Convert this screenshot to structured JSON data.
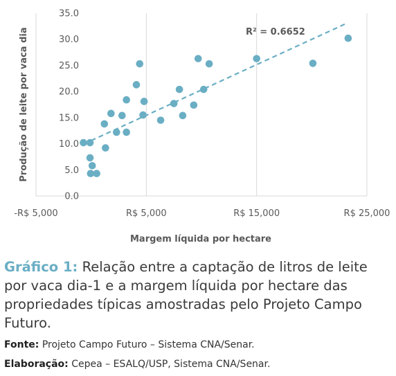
{
  "chart_data": {
    "type": "scatter",
    "title": "",
    "xlabel": "Margem líquida por hectare",
    "ylabel": "Produção de leite por vaca dia",
    "xlim": [
      -5000,
      25000
    ],
    "ylim": [
      0,
      35
    ],
    "x_ticks": [
      -5000,
      5000,
      15000,
      25000
    ],
    "x_tick_labels": [
      "-R$ 5,000",
      "R$ 5,000",
      "R$ 15,000",
      "R$ 25,000"
    ],
    "y_ticks": [
      0,
      5,
      10,
      15,
      20,
      25,
      30,
      35
    ],
    "y_tick_labels": [
      "0.0",
      "5.0",
      "10.0",
      "15.0",
      "20.0",
      "25.0",
      "30.0",
      "35.0"
    ],
    "grid": {
      "vertical": true,
      "horizontal": false
    },
    "marker_color": "#6aaec4",
    "trendline": {
      "type": "linear",
      "style": "dashed",
      "color": "#6aaec4",
      "x": [
        0,
        23000
      ],
      "y": [
        10.6,
        32.9
      ],
      "label": "R² = 0.6652"
    },
    "points": [
      {
        "x": -700,
        "y": 10.2
      },
      {
        "x": -100,
        "y": 10.2
      },
      {
        "x": -100,
        "y": 7.3
      },
      {
        "x": 100,
        "y": 5.8
      },
      {
        "x": -50,
        "y": 4.3
      },
      {
        "x": 500,
        "y": 4.3
      },
      {
        "x": 1300,
        "y": 9.2
      },
      {
        "x": 1200,
        "y": 13.8
      },
      {
        "x": 1800,
        "y": 15.8
      },
      {
        "x": 2300,
        "y": 12.2
      },
      {
        "x": 2800,
        "y": 15.4
      },
      {
        "x": 3200,
        "y": 18.4
      },
      {
        "x": 3200,
        "y": 12.2
      },
      {
        "x": 4100,
        "y": 21.3
      },
      {
        "x": 4400,
        "y": 25.3
      },
      {
        "x": 4700,
        "y": 15.5
      },
      {
        "x": 4800,
        "y": 18.1
      },
      {
        "x": 6300,
        "y": 14.5
      },
      {
        "x": 7500,
        "y": 17.7
      },
      {
        "x": 8000,
        "y": 20.4
      },
      {
        "x": 8300,
        "y": 15.4
      },
      {
        "x": 9300,
        "y": 17.4
      },
      {
        "x": 9700,
        "y": 26.3
      },
      {
        "x": 10200,
        "y": 20.4
      },
      {
        "x": 10700,
        "y": 25.3
      },
      {
        "x": 15000,
        "y": 26.3
      },
      {
        "x": 20100,
        "y": 25.4
      },
      {
        "x": 23300,
        "y": 30.2
      }
    ]
  },
  "caption": {
    "label": "Gráfico 1:",
    "text": "Relação entre a captação de litros de leite por vaca dia-1 e a margem líquida por hectare das propriedades típicas amostradas pelo Projeto Campo Futuro."
  },
  "source": {
    "label": "Fonte:",
    "text": "Projeto Campo Futuro – Sistema CNA/Senar."
  },
  "elaboration": {
    "label": "Elaboração:",
    "text": "Cepea – ESALQ/USP, Sistema CNA/Senar."
  }
}
